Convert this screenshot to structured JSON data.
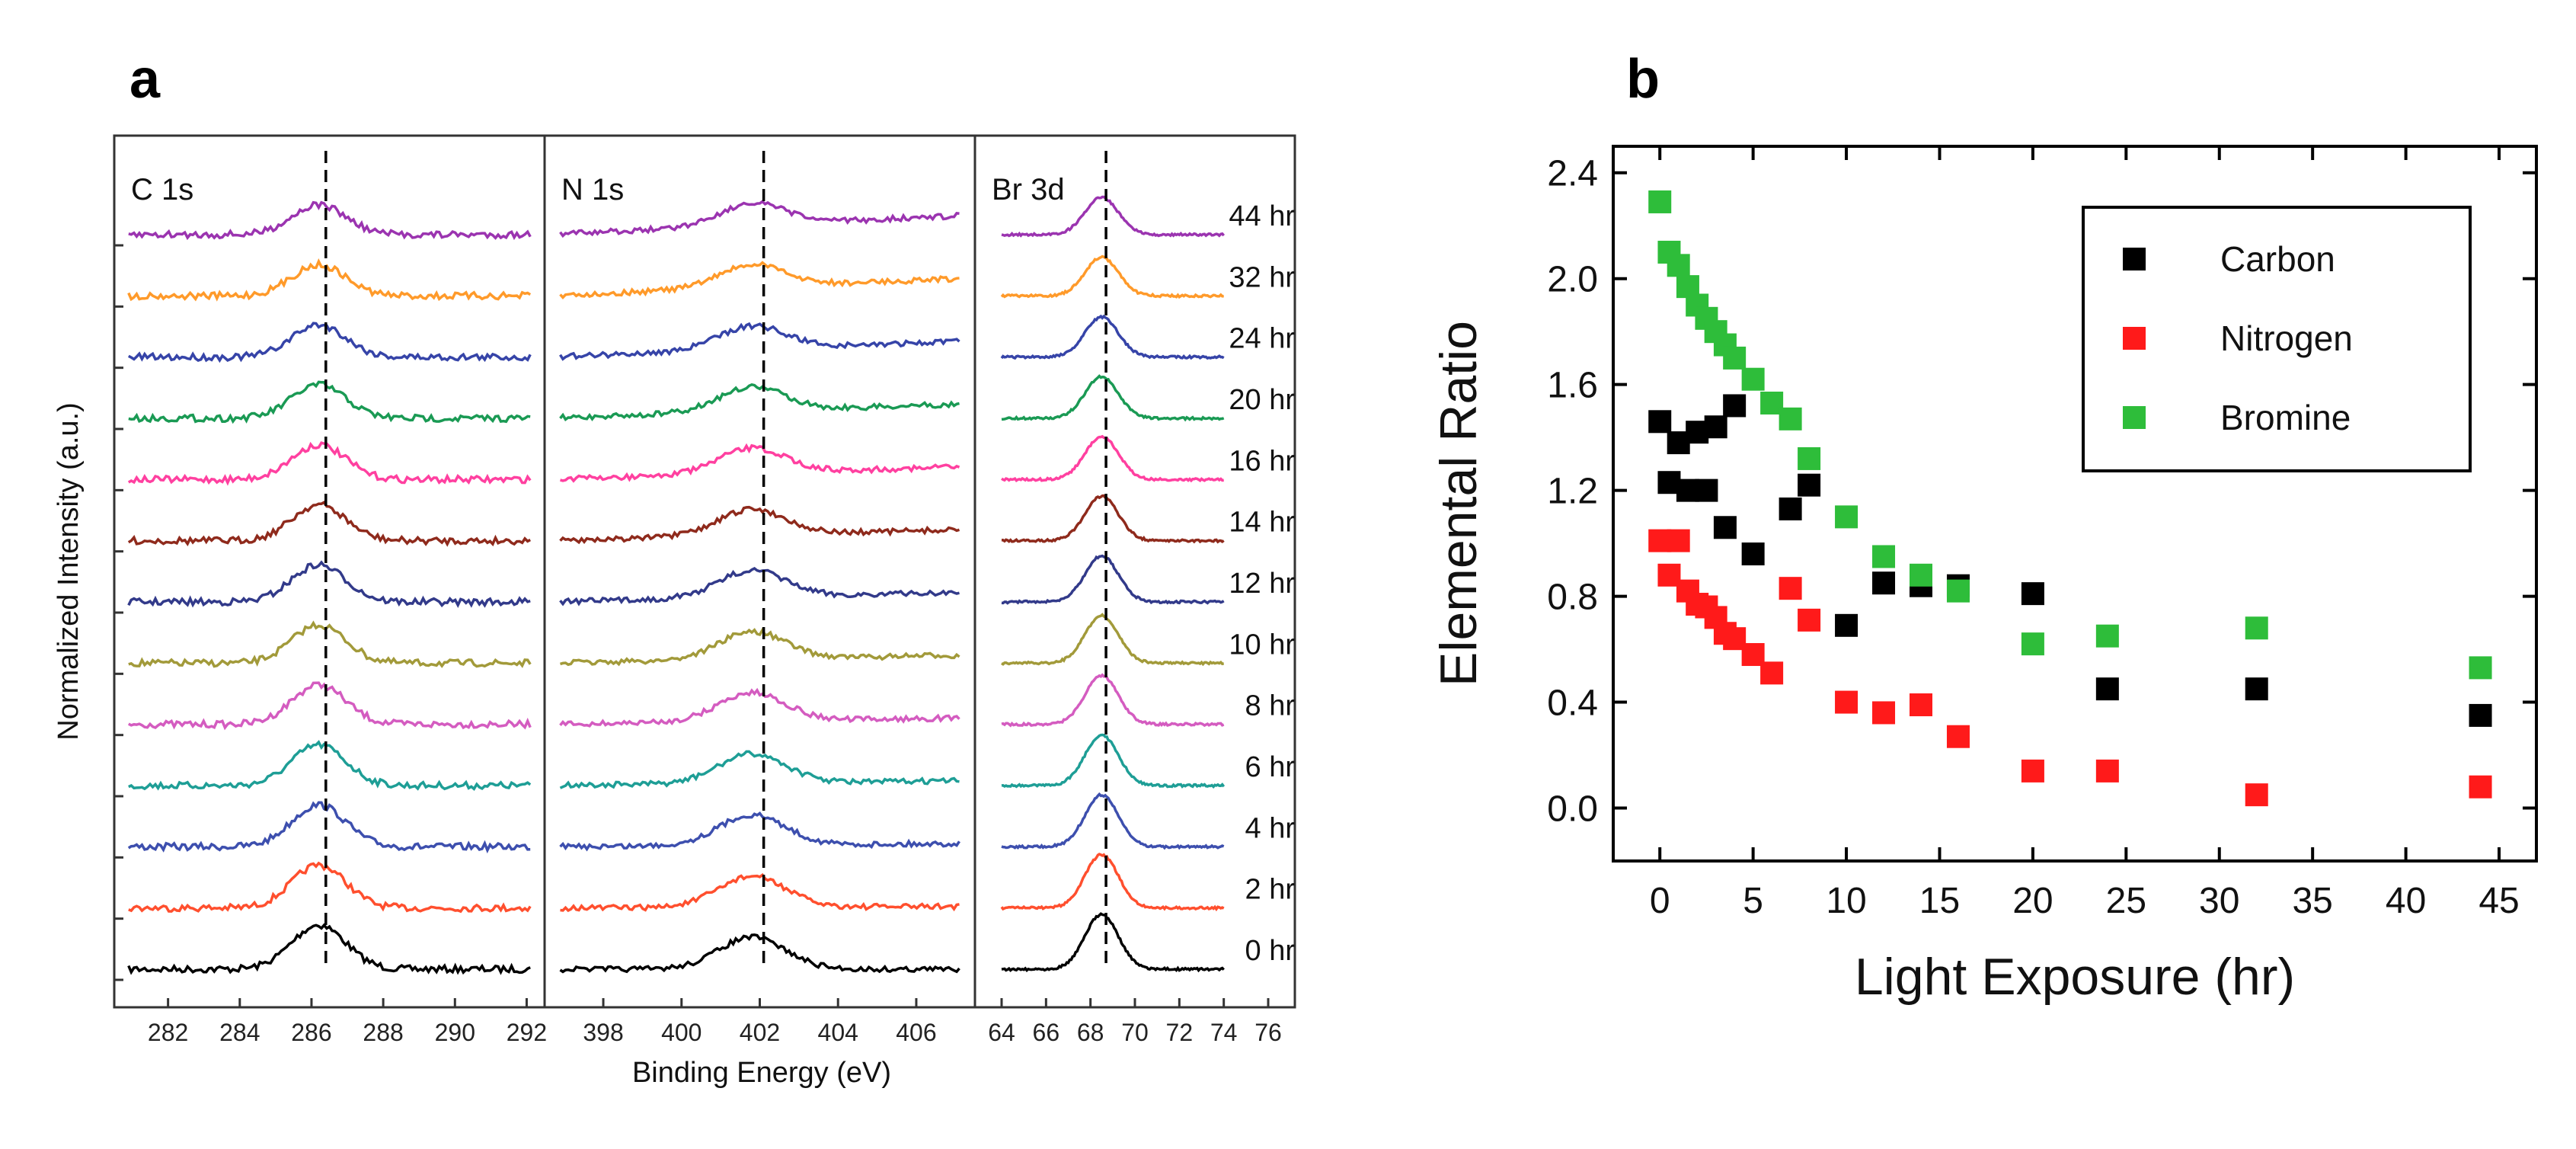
{
  "panel_letters": [
    "a",
    "b"
  ],
  "chart_data": [
    {
      "type": "line",
      "panel": "a",
      "ylabel": "Normalized Intensity (a.u.)",
      "xlabel": "Binding Energy (eV)",
      "series_labels": [
        "0 hr",
        "2 hr",
        "4 hr",
        "6 hr",
        "8 hr",
        "10 hr",
        "12 hr",
        "14 hr",
        "16 hr",
        "20 hr",
        "24 hr",
        "32 hr",
        "44 hr"
      ],
      "series_colors": [
        "#000000",
        "#ff4f2e",
        "#3d4fae",
        "#1e9e96",
        "#d45cc0",
        "#a29a3a",
        "#323a8a",
        "#8f2a1c",
        "#ff40a0",
        "#1a9a54",
        "#3644a8",
        "#ff9a2a",
        "#9b34b0"
      ],
      "subpanels": [
        {
          "name": "C 1s",
          "xlim": [
            280.5,
            292.5
          ],
          "ticks": [
            282,
            284,
            286,
            288,
            290,
            292
          ],
          "peak": 286.2,
          "dashed_x": 286.4
        },
        {
          "name": "N 1s",
          "xlim": [
            396.5,
            407.5
          ],
          "ticks": [
            398,
            400,
            402,
            404,
            406
          ],
          "peak": 401.8,
          "dashed_x": 402.1
        },
        {
          "name": "Br 3d",
          "xlim": [
            62.8,
            77.2
          ],
          "ticks": [
            64,
            66,
            68,
            70,
            72,
            74,
            76
          ],
          "peak": 68.5,
          "dashed_x": 68.7
        }
      ]
    },
    {
      "type": "scatter",
      "panel": "b",
      "xlabel": "Light Exposure (hr)",
      "ylabel": "Elemental Ratio",
      "xlim": [
        -2.5,
        47
      ],
      "ylim": [
        -0.2,
        2.5
      ],
      "xticks": [
        0,
        5,
        10,
        15,
        20,
        25,
        30,
        35,
        40,
        45
      ],
      "yticks": [
        0.0,
        0.4,
        0.8,
        1.2,
        1.6,
        2.0,
        2.4
      ],
      "legend": "top-right",
      "series": [
        {
          "name": "Carbon",
          "color": "#000000",
          "x": [
            0,
            0.5,
            1,
            1.5,
            2,
            2.5,
            3,
            3.5,
            4,
            5,
            7,
            8,
            10,
            12,
            14,
            16,
            20,
            24,
            32,
            44
          ],
          "y": [
            1.46,
            1.23,
            1.38,
            1.2,
            1.42,
            1.2,
            1.44,
            1.06,
            1.52,
            0.96,
            1.13,
            1.22,
            0.69,
            0.85,
            0.84,
            0.84,
            0.81,
            0.45,
            0.45,
            0.35
          ]
        },
        {
          "name": "Nitrogen",
          "color": "#ff1a1a",
          "x": [
            0,
            0.5,
            1,
            1.5,
            2,
            2.5,
            3,
            3.5,
            4,
            5,
            6,
            7,
            8,
            10,
            12,
            14,
            16,
            20,
            24,
            32,
            44
          ],
          "y": [
            1.01,
            0.88,
            1.01,
            0.82,
            0.77,
            0.76,
            0.72,
            0.66,
            0.64,
            0.58,
            0.51,
            0.83,
            0.71,
            0.4,
            0.36,
            0.39,
            0.27,
            0.14,
            0.14,
            0.05,
            0.08
          ]
        },
        {
          "name": "Bromine",
          "color": "#2ebd3a",
          "x": [
            0,
            0.5,
            1,
            1.5,
            2,
            2.5,
            3,
            3.5,
            4,
            5,
            6,
            7,
            8,
            10,
            12,
            14,
            16,
            20,
            24,
            32,
            44
          ],
          "y": [
            2.29,
            2.1,
            2.05,
            1.97,
            1.9,
            1.85,
            1.8,
            1.75,
            1.7,
            1.62,
            1.53,
            1.47,
            1.32,
            1.1,
            0.95,
            0.88,
            0.82,
            0.62,
            0.65,
            0.68,
            0.53
          ]
        }
      ]
    }
  ]
}
